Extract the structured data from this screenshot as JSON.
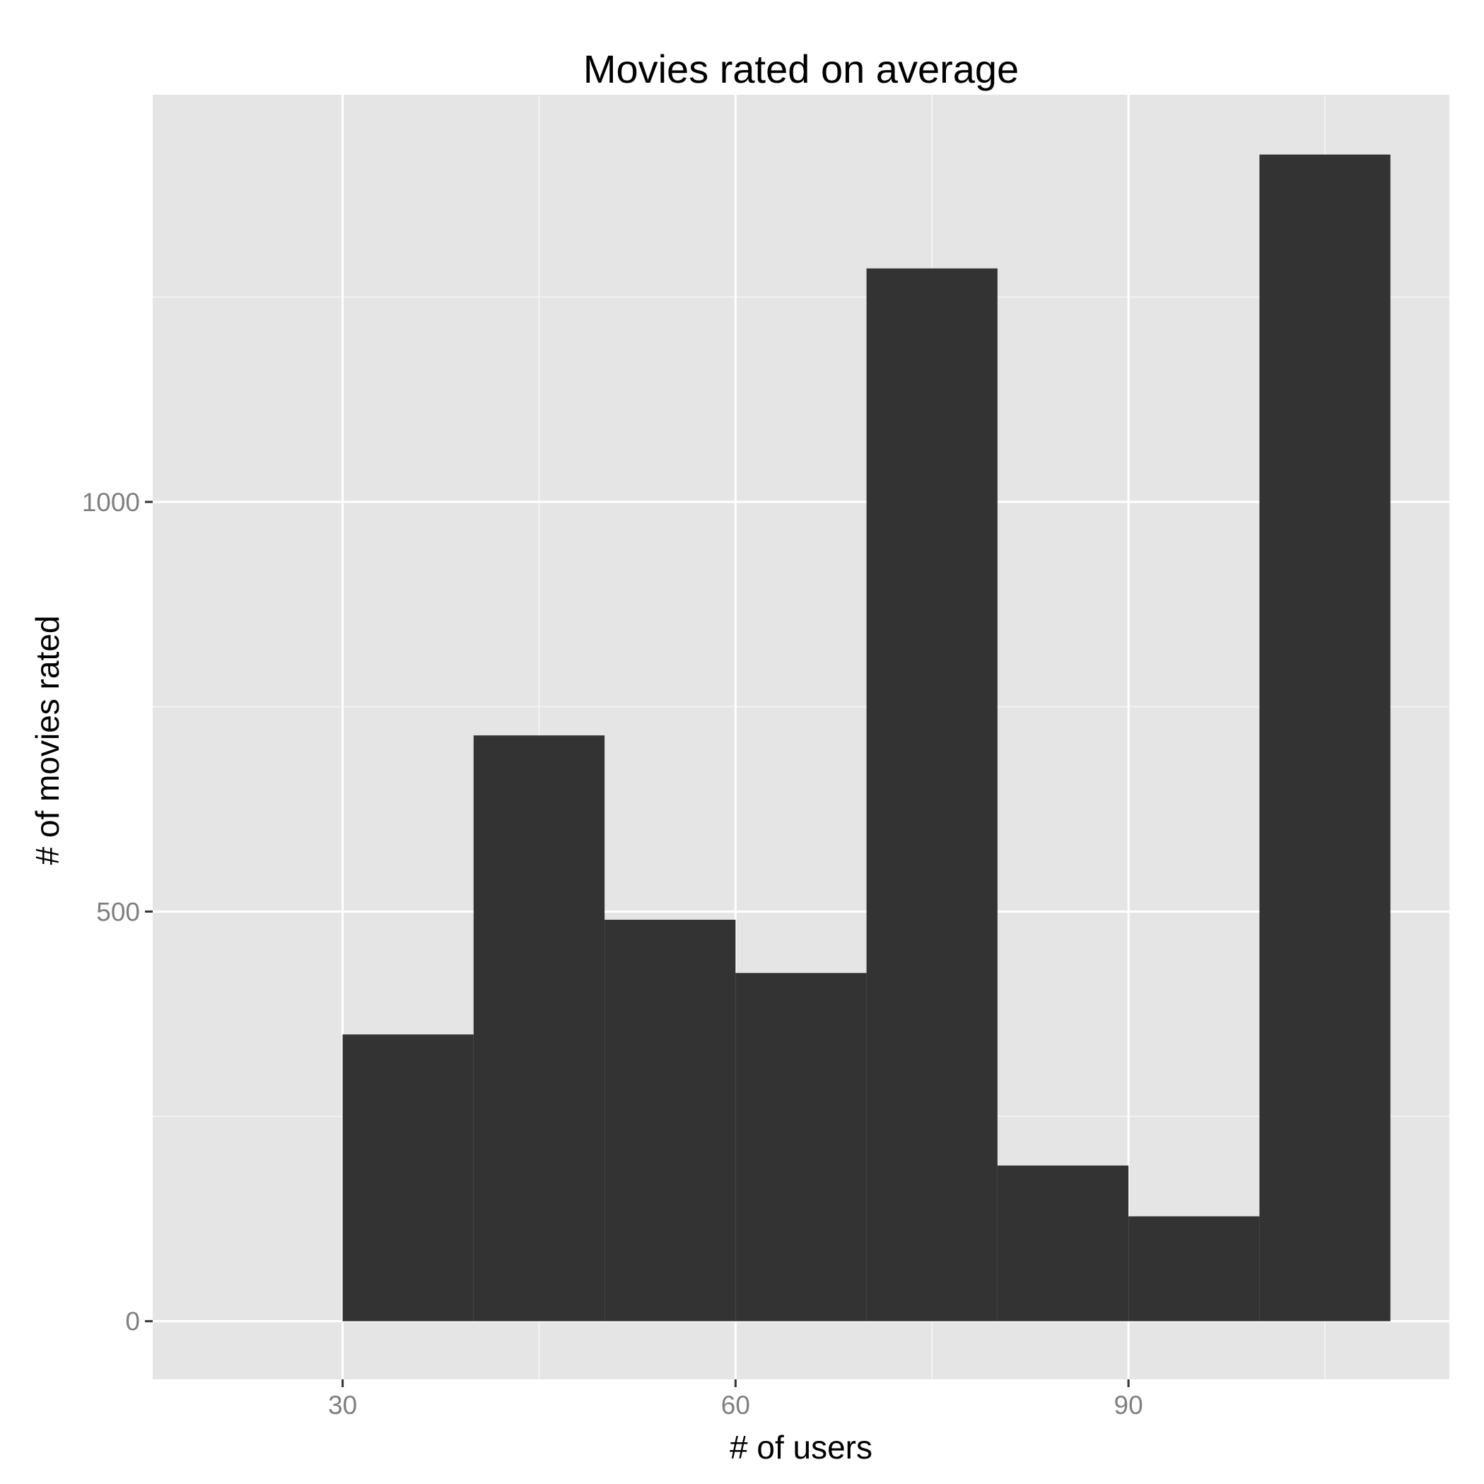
{
  "chart_data": {
    "type": "bar",
    "title": "Movies rated on average",
    "xlabel": "# of users",
    "ylabel": "# of movies rated",
    "bin_width": 10,
    "bins": [
      {
        "x_start": 30,
        "x_end": 40,
        "value": 350
      },
      {
        "x_start": 40,
        "x_end": 50,
        "value": 715
      },
      {
        "x_start": 50,
        "x_end": 60,
        "value": 490
      },
      {
        "x_start": 60,
        "x_end": 70,
        "value": 425
      },
      {
        "x_start": 70,
        "x_end": 80,
        "value": 1285
      },
      {
        "x_start": 80,
        "x_end": 90,
        "value": 190
      },
      {
        "x_start": 90,
        "x_end": 100,
        "value": 128
      },
      {
        "x_start": 100,
        "x_end": 110,
        "value": 1424
      }
    ],
    "xlim": [
      15.5,
      114.5
    ],
    "ylim": [
      -71,
      1497
    ],
    "x_ticks": [
      30,
      60,
      90
    ],
    "x_minor_ticks": [
      45,
      75,
      105
    ],
    "y_ticks": [
      0,
      500,
      1000
    ],
    "y_minor_ticks": [
      250,
      750,
      1250
    ],
    "grid": true,
    "legend": "none",
    "colors": {
      "bar": "#333333",
      "panel": "#e5e5e5",
      "grid_major": "#ffffff",
      "grid_minor": "#f2f2f2",
      "tick_text": "#7f7f7f"
    }
  }
}
